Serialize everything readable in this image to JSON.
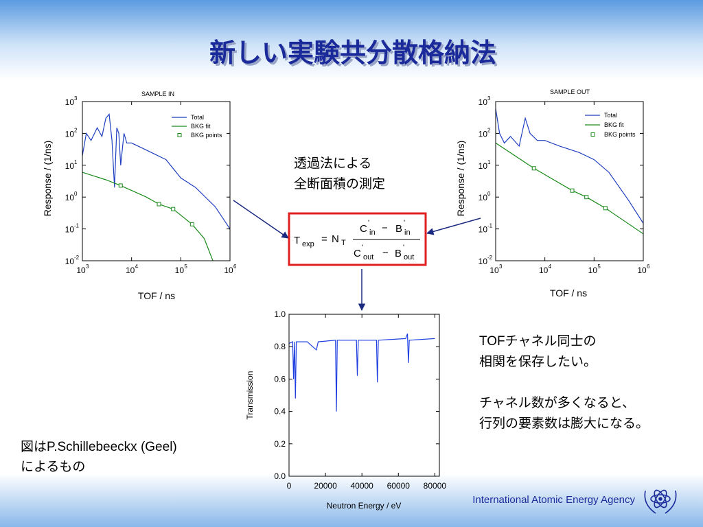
{
  "title": "新しい実験共分散格納法",
  "method_note": [
    "透過法による",
    "全断面積の測定"
  ],
  "tof_note": [
    "TOFチャネル同士の",
    "相関を保存したい。"
  ],
  "channel_note": [
    "チャネル数が多くなると、",
    "行列の要素数は膨大になる。"
  ],
  "credit": [
    "図はP.Schillebeeckx (Geel)",
    "によるもの"
  ],
  "footer": "International Atomic Energy Agency",
  "formula": {
    "lhs": "T",
    "lhs_sub": "exp",
    "equals": "=",
    "factor": "N",
    "factor_sub": "T",
    "numerator": {
      "a": "C",
      "a_sub": "in",
      "op": "−",
      "b": "B",
      "b_sub": "in"
    },
    "denominator": {
      "a": "C",
      "a_sub": "out",
      "op": "−",
      "b": "B",
      "b_sub": "out"
    },
    "prime": "'"
  },
  "chart_data": [
    {
      "type": "line",
      "title": "SAMPLE IN",
      "xlabel": "TOF / ns",
      "ylabel": "Response / (1/ns)",
      "xscale": "log",
      "yscale": "log",
      "xlim": [
        1000,
        1000000
      ],
      "ylim": [
        0.01,
        1000
      ],
      "xticks": [
        {
          "value": 1000,
          "label": "10",
          "exponent": "3"
        },
        {
          "value": 10000,
          "label": "10",
          "exponent": "4"
        },
        {
          "value": 100000,
          "label": "10",
          "exponent": "5"
        },
        {
          "value": 1000000,
          "label": "10",
          "exponent": "6"
        }
      ],
      "yticks": [
        {
          "value": 0.01,
          "label": "10",
          "exponent": "-2"
        },
        {
          "value": 0.1,
          "label": "10",
          "exponent": "-1"
        },
        {
          "value": 1,
          "label": "10",
          "exponent": "0"
        },
        {
          "value": 10,
          "label": "10",
          "exponent": "1"
        },
        {
          "value": 100,
          "label": "10",
          "exponent": "2"
        },
        {
          "value": 1000,
          "label": "10",
          "exponent": "3"
        }
      ],
      "series": [
        {
          "name": "Total",
          "color": "#1f3fc0",
          "x": [
            1000,
            1200,
            1500,
            2000,
            2500,
            3000,
            3500,
            4000,
            4500,
            5000,
            5500,
            6000,
            7000,
            8000,
            10000,
            20000,
            50000,
            100000,
            200000,
            500000,
            1000000
          ],
          "values": [
            20,
            100,
            60,
            150,
            80,
            300,
            400,
            60,
            2,
            150,
            100,
            10,
            100,
            50,
            50,
            30,
            15,
            4,
            2,
            0.5,
            0.1
          ]
        },
        {
          "name": "BKG fit",
          "color": "#1a8a1a",
          "x": [
            1000,
            3000,
            6000,
            20000,
            36000,
            70000,
            170000,
            300000,
            450000
          ],
          "values": [
            6,
            3.5,
            2.3,
            1,
            0.6,
            0.42,
            0.14,
            0.05,
            0.01
          ]
        },
        {
          "name": "BKG points",
          "color": "#1a8a1a",
          "marker": "square",
          "x": [
            6000,
            36000,
            70000,
            170000
          ],
          "values": [
            2.3,
            0.6,
            0.42,
            0.14
          ]
        }
      ]
    },
    {
      "type": "line",
      "title": "SAMPLE OUT",
      "xlabel": "TOF / ns",
      "ylabel": "Response / (1/ns)",
      "xscale": "log",
      "yscale": "log",
      "xlim": [
        1000,
        1000000
      ],
      "ylim": [
        0.01,
        1000
      ],
      "xticks": [
        {
          "value": 1000,
          "label": "10",
          "exponent": "3"
        },
        {
          "value": 10000,
          "label": "10",
          "exponent": "4"
        },
        {
          "value": 100000,
          "label": "10",
          "exponent": "5"
        },
        {
          "value": 1000000,
          "label": "10",
          "exponent": "6"
        }
      ],
      "yticks": [
        {
          "value": 0.01,
          "label": "10",
          "exponent": "-2"
        },
        {
          "value": 0.1,
          "label": "10",
          "exponent": "-1"
        },
        {
          "value": 1,
          "label": "10",
          "exponent": "0"
        },
        {
          "value": 10,
          "label": "10",
          "exponent": "1"
        },
        {
          "value": 100,
          "label": "10",
          "exponent": "2"
        },
        {
          "value": 1000,
          "label": "10",
          "exponent": "3"
        }
      ],
      "series": [
        {
          "name": "Total",
          "color": "#1f3fc0",
          "x": [
            1000,
            1200,
            1500,
            2000,
            3000,
            4000,
            5000,
            7000,
            10000,
            20000,
            50000,
            100000,
            200000,
            500000,
            1000000
          ],
          "values": [
            600,
            100,
            50,
            80,
            40,
            300,
            100,
            60,
            60,
            40,
            25,
            15,
            6,
            0.8,
            0.15
          ]
        },
        {
          "name": "BKG fit",
          "color": "#1a8a1a",
          "x": [
            1000,
            6000,
            36000,
            70000,
            170000,
            1000000
          ],
          "values": [
            50,
            8,
            1.6,
            1,
            0.45,
            0.07
          ]
        },
        {
          "name": "BKG points",
          "color": "#1a8a1a",
          "marker": "square",
          "x": [
            6000,
            36000,
            70000,
            170000
          ],
          "values": [
            8,
            1.6,
            1,
            0.45
          ]
        }
      ]
    },
    {
      "type": "line",
      "xlabel": "Neutron Energy / eV",
      "ylabel": "Transmission",
      "xlim": [
        0,
        82500
      ],
      "ylim": [
        0,
        1
      ],
      "xticks": [
        0,
        20000,
        40000,
        60000,
        80000
      ],
      "yticks": [
        {
          "value": 0,
          "label": "0.0"
        },
        0.2,
        0.4,
        0.6,
        0.8,
        {
          "value": 1,
          "label": "1.0"
        }
      ],
      "series": [
        {
          "color": "#1f3fe0",
          "x": [
            0,
            2000,
            2500,
            3000,
            3500,
            4000,
            10000,
            15000,
            16000,
            25500,
            26000,
            26500,
            37000,
            37500,
            38000,
            48000,
            48500,
            49000,
            64000,
            65000,
            65500,
            66000,
            80000
          ],
          "values": [
            0.82,
            0.83,
            0.6,
            0.83,
            0.48,
            0.83,
            0.83,
            0.78,
            0.83,
            0.84,
            0.4,
            0.84,
            0.84,
            0.62,
            0.84,
            0.84,
            0.58,
            0.84,
            0.85,
            0.88,
            0.7,
            0.84,
            0.85
          ]
        }
      ]
    }
  ]
}
